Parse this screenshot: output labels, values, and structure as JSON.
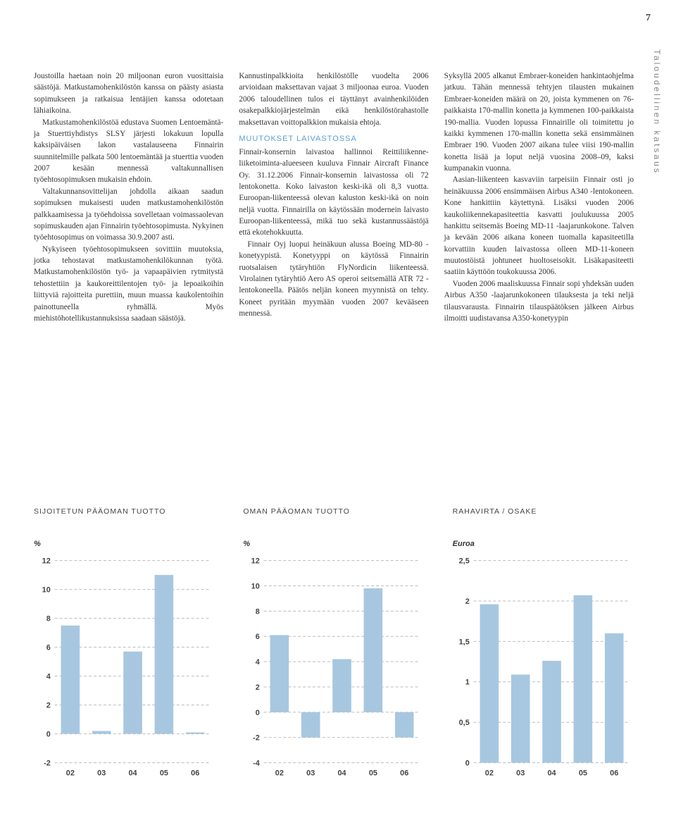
{
  "page_number": "7",
  "sidebar_label": "Taloudellinen katsaus",
  "columns": {
    "col1": {
      "p1": "Joustoilla haetaan noin 20 miljoonan euron vuosittaisia säästöjä. Matkustamohenkilöstön kanssa on päästy asiasta sopimukseen ja ratkaisua lentäjien kanssa odotetaan lähiaikoina.",
      "p2": "Matkustamohenkilöstöä edustava Suomen Lentoemäntä- ja Stuerttiyhdistys SLSY järjesti lokakuun lopulla kaksipäiväisen lakon vastalauseena Finnairin suunnitelmille palkata 500 lentoemäntää ja stuerttia vuoden 2007 kesään mennessä valtakunnallisen työehtosopimuksen mukaisin ehdoin.",
      "p3": "Valtakunnansovittelijan johdolla aikaan saadun sopimuksen mukaisesti uuden matkustamohenkilöstön palkkaamisessa ja työehdoissa sovelletaan voimassaolevan sopimuskauden ajan Finnairin työehtosopimusta. Nykyinen työehtosopimus on voimassa 30.9.2007 asti.",
      "p4": "Nykyiseen työehtosopimukseen sovittiin muutoksia, jotka tehostavat matkustamohenkilökunnan työtä. Matkustamohenkilöstön työ- ja vapaapäivien rytmitystä tehostettiin ja kaukoreittilentojen työ- ja lepoaikoihin liittyviä rajoitteita purettiin, muun muassa kaukolentoihin painottuneella ryhmällä. Myös miehistöhotellikustannuksissa saadaan säästöjä."
    },
    "col2": {
      "p1": "Kannustinpalkkioita henkilöstölle vuodelta 2006 arvioidaan maksettavan vajaat 3 miljoonaa euroa. Vuoden 2006 taloudellinen tulos ei täyttänyt avainhenkilöiden osakepalkkiojärjestelmän eikä henkilöstörahastolle maksettavan voittopalkkion mukaisia ehtoja.",
      "heading": "MUUTOKSET LAIVASTOSSA",
      "p2": "Finnair-konsernin laivastoa hallinnoi Reittiliikenne-liiketoiminta-alueeseen kuuluva Finnair Aircraft Finance Oy. 31.12.2006 Finnair-konsernin laivastossa oli 72 lentokonetta. Koko laivaston keski-ikä oli 8,3 vuotta. Euroopan-liikenteessä olevan kaluston keski-ikä on noin neljä vuotta. Finnairilla on käytössään modernein laivasto Euroopan-liikenteessä, mikä tuo sekä kustannussäästöjä että ekotehokkuutta.",
      "p3": "Finnair Oyj luopui heinäkuun alussa Boeing MD-80 -konetyypistä. Konetyyppi on käytössä Finnairin ruotsalaisen tytäryhtiön FlyNordicin liikenteessä. Virolainen tytäryhtiö Aero AS operoi seitsemällä ATR 72 -lentokoneella. Päätös neljän koneen myynnistä on tehty. Koneet pyritään myymään vuoden 2007 kevääseen mennessä."
    },
    "col3": {
      "p1": "Syksyllä 2005 alkanut Embraer-koneiden hankintaohjelma jatkuu. Tähän mennessä tehtyjen tilausten mukainen Embraer-koneiden määrä on 20, joista kymmenen on 76-paikkaista 170-mallin konetta ja kymmenen 100-paikkaista 190-mallia. Vuoden lopussa Finnairille oli toimitettu jo kaikki kymmenen 170-mallin konetta sekä ensimmäinen Embraer 190. Vuoden 2007 aikana tulee viisi 190-mallin konetta lisää ja loput neljä vuosina 2008–09, kaksi kumpanakin vuonna.",
      "p2": "Aasian-liikenteen kasvaviin tarpeisiin Finnair osti jo heinäkuussa 2006 ensimmäisen Airbus A340 -lentokoneen. Kone hankittiin käytettynä. Lisäksi vuoden 2006 kaukoliikennekapasiteettia kasvatti joulukuussa 2005 hankittu seitsemäs Boeing MD-11 -laajarunkokone. Talven ja kevään 2006 aikana koneen tuomalla kapasiteetilla korvattiin kuuden laivastossa olleen MD-11-koneen muutostöistä johtuneet huoltoseisokit. Lisäkapasiteetti saatiin käyttöön toukokuussa 2006.",
      "p3": "Vuoden 2006 maaliskuussa Finnair sopi yhdeksän uuden Airbus A350 -laajarunkokoneen tilauksesta ja teki neljä tilausvarausta. Finnairin tilauspäätöksen jälkeen Airbus ilmoitti uudistavansa A350-konetyypin"
    }
  },
  "charts": {
    "chart1": {
      "title": "SIJOITETUN PÄÄOMAN TUOTTO",
      "unit": "%",
      "type": "bar",
      "categories": [
        "02",
        "03",
        "04",
        "05",
        "06"
      ],
      "values": [
        7.5,
        0.2,
        5.7,
        11.0,
        0.1
      ],
      "ymin": -2,
      "ymax": 12,
      "ytick_step": 2,
      "bar_color": "#a7c7e0",
      "grid_color": "#bbbbbb",
      "bar_width": 0.6
    },
    "chart2": {
      "title": "OMAN PÄÄOMAN TUOTTO",
      "unit": "%",
      "type": "bar",
      "categories": [
        "02",
        "03",
        "04",
        "05",
        "06"
      ],
      "values": [
        6.1,
        -2.0,
        4.2,
        9.8,
        -2.0
      ],
      "ymin": -4,
      "ymax": 12,
      "ytick_step": 2,
      "bar_color": "#a7c7e0",
      "grid_color": "#bbbbbb",
      "bar_width": 0.6
    },
    "chart3": {
      "title": "RAHAVIRTA / OSAKE",
      "unit": "Euroa",
      "type": "bar",
      "categories": [
        "02",
        "03",
        "04",
        "05",
        "06"
      ],
      "values": [
        1.96,
        1.09,
        1.26,
        2.07,
        1.6
      ],
      "ymin": 0,
      "ymax": 2.5,
      "ytick_step": 0.5,
      "bar_color": "#a7c7e0",
      "grid_color": "#bbbbbb",
      "bar_width": 0.6,
      "ytick_labels": [
        "0",
        "0,5",
        "1",
        "1,5",
        "2",
        "2,5"
      ]
    }
  }
}
